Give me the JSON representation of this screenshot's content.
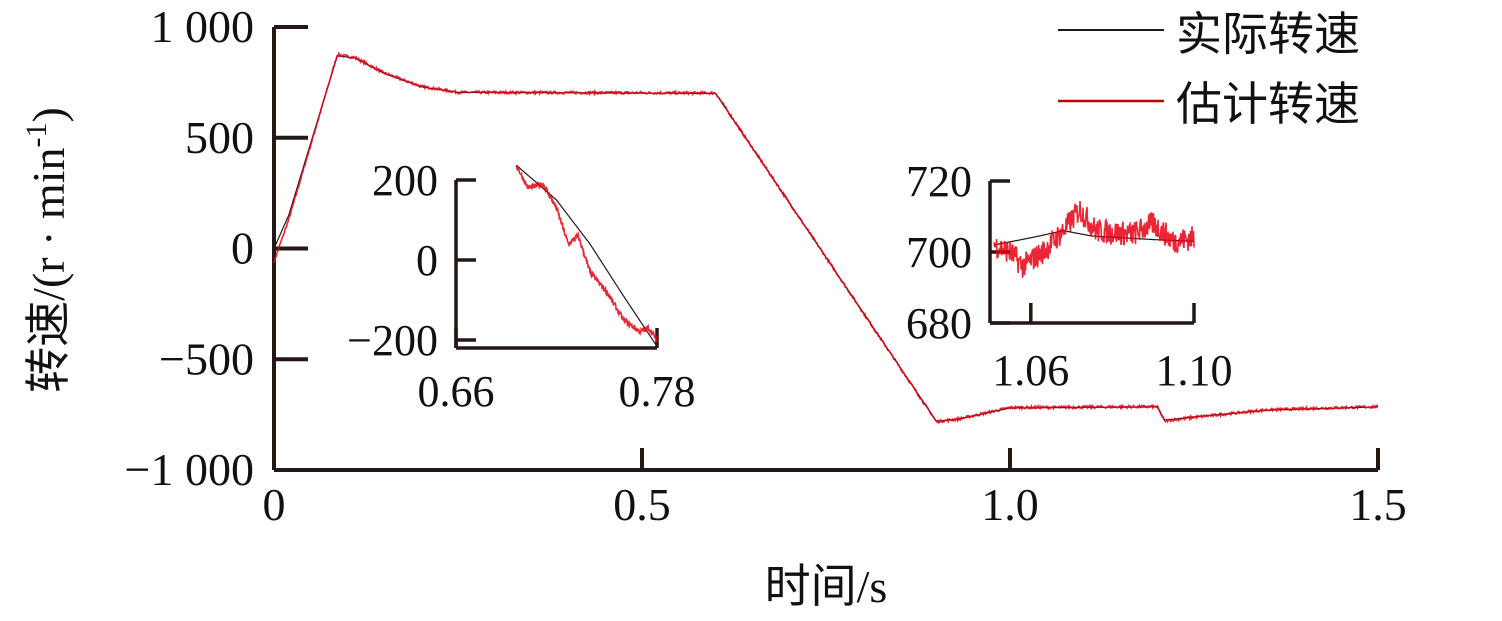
{
  "chart_data": [
    {
      "type": "line",
      "xlabel": "时间/s",
      "ylabel": "转速/(r · min",
      "ylabel_sup": "-1",
      "ylabel_close": ")",
      "xlim": [
        0,
        1.5
      ],
      "ylim": [
        -1000,
        1000
      ],
      "xticks": [
        0,
        0.5,
        1.0,
        1.5
      ],
      "xtick_labels": [
        "0",
        "0.5",
        "1.0",
        "1.5"
      ],
      "yticks": [
        1000,
        500,
        0,
        -500,
        -1000
      ],
      "ytick_labels": [
        "1 000",
        "500",
        "0",
        "−500",
        "−1 000"
      ],
      "grid": false,
      "legend": "top-right",
      "series": [
        {
          "name": "实际转速",
          "color": "#231815",
          "points": [
            [
              0,
              0
            ],
            [
              0.02,
              150
            ],
            [
              0.086,
              870
            ],
            [
              0.11,
              860
            ],
            [
              0.15,
              790
            ],
            [
              0.2,
              730
            ],
            [
              0.25,
              705
            ],
            [
              0.6,
              700
            ],
            [
              0.9,
              -780
            ],
            [
              0.93,
              -770
            ],
            [
              1.0,
              -720
            ],
            [
              1.2,
              -715
            ],
            [
              1.21,
              -775
            ],
            [
              1.25,
              -760
            ],
            [
              1.35,
              -730
            ],
            [
              1.5,
              -715
            ]
          ]
        },
        {
          "name": "估计转速",
          "color": "#e60012",
          "points": [
            [
              0,
              -60
            ],
            [
              0.02,
              130
            ],
            [
              0.086,
              875
            ],
            [
              0.11,
              862
            ],
            [
              0.15,
              792
            ],
            [
              0.2,
              732
            ],
            [
              0.25,
              705
            ],
            [
              0.6,
              702
            ],
            [
              0.9,
              -782
            ],
            [
              0.93,
              -770
            ],
            [
              1.0,
              -718
            ],
            [
              1.2,
              -714
            ],
            [
              1.21,
              -778
            ],
            [
              1.25,
              -762
            ],
            [
              1.35,
              -728
            ],
            [
              1.5,
              -714
            ]
          ]
        }
      ]
    },
    {
      "type": "line",
      "inset": "zoom of 0.66–0.78 s",
      "xlim": [
        0.66,
        0.78
      ],
      "ylim": [
        -220,
        200
      ],
      "xticks": [
        0.66,
        0.78
      ],
      "xtick_labels": [
        "0.66",
        "0.78"
      ],
      "yticks": [
        200,
        0,
        -200
      ],
      "ytick_labels": [
        "200",
        "0",
        "−200"
      ],
      "series": [
        {
          "name": "实际转速",
          "color": "#231815",
          "points": [
            [
              0.696,
              237
            ],
            [
              0.72,
              150
            ],
            [
              0.74,
              40
            ],
            [
              0.76,
              -90
            ],
            [
              0.78,
              -216
            ]
          ]
        },
        {
          "name": "估计转速",
          "color": "#e60012",
          "points": [
            [
              0.696,
              237
            ],
            [
              0.703,
              180
            ],
            [
              0.712,
              190
            ],
            [
              0.72,
              130
            ],
            [
              0.727,
              40
            ],
            [
              0.733,
              60
            ],
            [
              0.74,
              -30
            ],
            [
              0.75,
              -80
            ],
            [
              0.76,
              -150
            ],
            [
              0.77,
              -180
            ],
            [
              0.775,
              -170
            ],
            [
              0.78,
              -200
            ]
          ]
        }
      ]
    },
    {
      "type": "line",
      "inset": "zoom of 1.05–1.10 s",
      "xlim": [
        1.05,
        1.1
      ],
      "ylim": [
        680,
        720
      ],
      "xticks": [
        1.06,
        1.1
      ],
      "xtick_labels": [
        "1.06",
        "1.10"
      ],
      "yticks": [
        720,
        700,
        680
      ],
      "ytick_labels": [
        "720",
        "700",
        "680"
      ],
      "series": [
        {
          "name": "实际转速",
          "color": "#231815",
          "points": [
            [
              1.051,
              702
            ],
            [
              1.06,
              704
            ],
            [
              1.068,
              706
            ],
            [
              1.075,
              704.5
            ],
            [
              1.09,
              703.5
            ],
            [
              1.1,
              703
            ]
          ]
        },
        {
          "name": "估计转速",
          "color": "#e60012",
          "points": [
            [
              1.051,
              702
            ],
            [
              1.055,
              700
            ],
            [
              1.058,
              696
            ],
            [
              1.063,
              700
            ],
            [
              1.068,
              706
            ],
            [
              1.072,
              712
            ],
            [
              1.076,
              706
            ],
            [
              1.085,
              705
            ],
            [
              1.09,
              708
            ],
            [
              1.095,
              703
            ],
            [
              1.1,
              704
            ]
          ]
        }
      ]
    }
  ]
}
